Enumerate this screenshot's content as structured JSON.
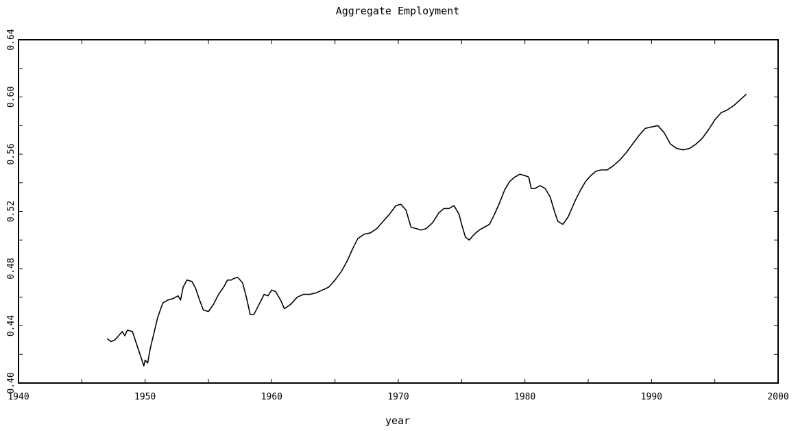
{
  "chart_data": {
    "type": "line",
    "title": "Aggregate Employment",
    "xlabel": "year",
    "ylabel": "",
    "xlim": [
      1940,
      2000
    ],
    "ylim": [
      0.4,
      0.64
    ],
    "xticks": [
      1940,
      1950,
      1960,
      1970,
      1980,
      1990,
      2000
    ],
    "xtick_labels": [
      "1940",
      "1950",
      "1960",
      "1970",
      "1980",
      "1990",
      "2000"
    ],
    "yticks": [
      0.4,
      0.44,
      0.48,
      0.52,
      0.56,
      0.6,
      0.64
    ],
    "ytick_labels": [
      "0.40",
      "0.44",
      "0.48",
      "0.52",
      "0.56",
      "0.60",
      "0.64"
    ],
    "grid": false,
    "series": [
      {
        "color": "#000000",
        "x": [
          1947.0,
          1947.3,
          1947.6,
          1948.0,
          1948.2,
          1948.4,
          1948.6,
          1949.0,
          1949.3,
          1949.6,
          1949.9,
          1950.0,
          1950.2,
          1950.4,
          1950.7,
          1951.0,
          1951.4,
          1951.8,
          1952.2,
          1952.6,
          1952.8,
          1953.0,
          1953.3,
          1953.7,
          1954.0,
          1954.3,
          1954.6,
          1955.0,
          1955.4,
          1955.8,
          1956.2,
          1956.5,
          1956.8,
          1957.0,
          1957.3,
          1957.7,
          1958.0,
          1958.3,
          1958.6,
          1959.0,
          1959.4,
          1959.7,
          1960.0,
          1960.3,
          1960.7,
          1961.0,
          1961.5,
          1962.0,
          1962.5,
          1963.0,
          1963.5,
          1964.0,
          1964.5,
          1965.0,
          1965.5,
          1966.0,
          1966.4,
          1966.8,
          1967.3,
          1967.8,
          1968.3,
          1968.8,
          1969.3,
          1969.8,
          1970.2,
          1970.6,
          1971.0,
          1971.4,
          1971.8,
          1972.2,
          1972.7,
          1973.2,
          1973.6,
          1974.0,
          1974.4,
          1974.8,
          1975.0,
          1975.3,
          1975.6,
          1976.0,
          1976.4,
          1976.8,
          1977.2,
          1977.6,
          1978.0,
          1978.4,
          1978.8,
          1979.2,
          1979.6,
          1980.0,
          1980.3,
          1980.5,
          1980.8,
          1981.2,
          1981.6,
          1982.0,
          1982.3,
          1982.6,
          1983.0,
          1983.4,
          1983.7,
          1984.0,
          1984.4,
          1984.8,
          1985.2,
          1985.6,
          1986.0,
          1986.5,
          1987.0,
          1987.5,
          1988.0,
          1988.5,
          1989.0,
          1989.5,
          1990.0,
          1990.5,
          1991.0,
          1991.5,
          1992.0,
          1992.5,
          1993.0,
          1993.5,
          1994.0,
          1994.5,
          1995.0,
          1995.5,
          1996.0,
          1996.5,
          1997.0,
          1997.5
        ],
        "y": [
          0.431,
          0.429,
          0.43,
          0.434,
          0.436,
          0.433,
          0.437,
          0.436,
          0.428,
          0.42,
          0.412,
          0.416,
          0.414,
          0.424,
          0.435,
          0.446,
          0.456,
          0.458,
          0.459,
          0.461,
          0.458,
          0.467,
          0.472,
          0.471,
          0.466,
          0.458,
          0.451,
          0.45,
          0.455,
          0.462,
          0.467,
          0.472,
          0.472,
          0.473,
          0.474,
          0.47,
          0.46,
          0.448,
          0.448,
          0.455,
          0.462,
          0.461,
          0.465,
          0.464,
          0.458,
          0.452,
          0.455,
          0.46,
          0.462,
          0.462,
          0.463,
          0.465,
          0.467,
          0.472,
          0.478,
          0.486,
          0.494,
          0.501,
          0.504,
          0.505,
          0.508,
          0.513,
          0.518,
          0.524,
          0.525,
          0.521,
          0.509,
          0.508,
          0.507,
          0.508,
          0.512,
          0.519,
          0.522,
          0.522,
          0.524,
          0.518,
          0.511,
          0.502,
          0.5,
          0.504,
          0.507,
          0.509,
          0.511,
          0.518,
          0.526,
          0.535,
          0.541,
          0.544,
          0.546,
          0.545,
          0.544,
          0.536,
          0.536,
          0.538,
          0.536,
          0.53,
          0.521,
          0.513,
          0.511,
          0.516,
          0.522,
          0.528,
          0.535,
          0.541,
          0.545,
          0.548,
          0.549,
          0.549,
          0.552,
          0.556,
          0.561,
          0.567,
          0.573,
          0.578,
          0.579,
          0.58,
          0.575,
          0.567,
          0.564,
          0.563,
          0.564,
          0.567,
          0.571,
          0.577,
          0.584,
          0.589,
          0.591,
          0.594,
          0.598,
          0.602
        ]
      }
    ]
  }
}
